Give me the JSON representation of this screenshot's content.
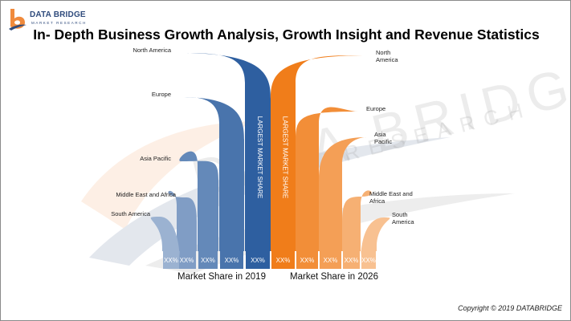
{
  "logo": {
    "name": "DATA BRIDGE",
    "tagline": "MARKET RESEARCH",
    "colors": {
      "orange": "#f08a3c",
      "blue": "#2f4b7c"
    }
  },
  "title": "In- Depth Business Growth Analysis, Growth Insight and Revenue Statistics",
  "watermark": {
    "line1": "DATA BRIDGE",
    "line2": "RESEARCH"
  },
  "copyright": "Copyright © 2019 DATABRIDGE",
  "chart_data": {
    "type": "bar",
    "title": "In- Depth Business Growth Analysis, Growth Insight and Revenue Statistics",
    "categories": [
      "North America",
      "Europe",
      "Asia Pacific",
      "Middle East and Africa",
      "South America"
    ],
    "series": [
      {
        "name": "Market Share in 2019",
        "color": "#2e5fa0",
        "highlight_label": "LARGEST MARKET SHARE",
        "value_labels": [
          "XX%",
          "XX%",
          "XX%",
          "XX%",
          "XX%"
        ],
        "relative_values": [
          5,
          4,
          3,
          2,
          1
        ],
        "region_labels": [
          "North America",
          "Europe",
          "Asia Pacific",
          "Middle East and Africa",
          "South America"
        ]
      },
      {
        "name": "Market Share in 2026",
        "color": "#f07d1a",
        "highlight_label": "LARGEST MARKET SHARE",
        "value_labels": [
          "XX%",
          "XX%",
          "XX%",
          "XX%",
          "XX%"
        ],
        "relative_values": [
          5,
          4,
          3,
          2,
          1
        ],
        "region_labels": [
          "North\nAmerica",
          "Europe",
          "Asia\nPacific",
          "Middle East and\nAfrica",
          "South\nAmerica"
        ]
      }
    ]
  }
}
